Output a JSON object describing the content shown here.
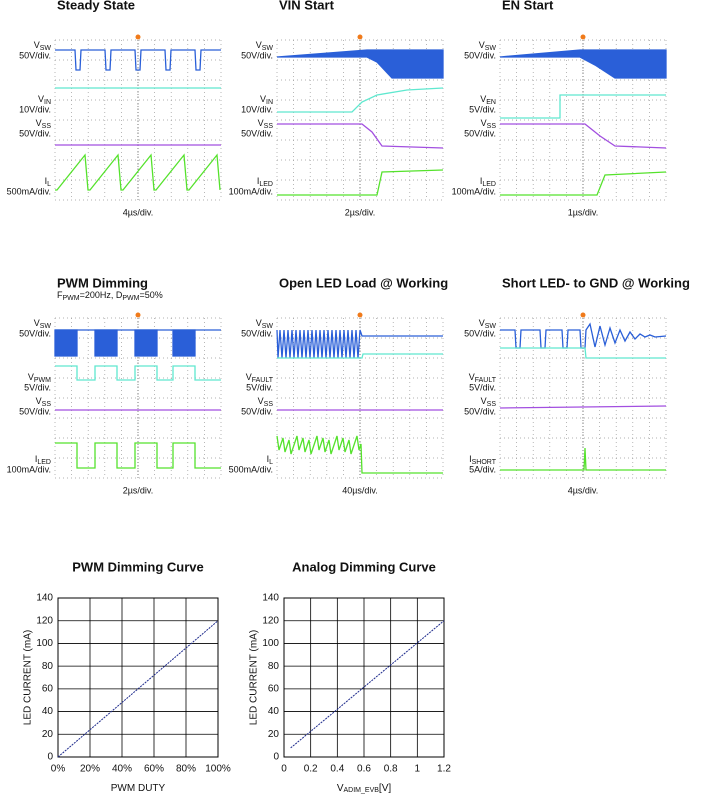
{
  "scopes": [
    {
      "title": "Steady State",
      "channels": [
        {
          "symbol": [
            "V",
            "SW"
          ],
          "scale": "50V/div."
        },
        {
          "symbol": [
            "V",
            "IN"
          ],
          "scale": "10V/div."
        },
        {
          "symbol": [
            "V",
            "SS"
          ],
          "scale": "50V/div."
        },
        {
          "symbol": [
            "I",
            "L"
          ],
          "scale": "500mA/div."
        }
      ],
      "timebase": "4µs/div."
    },
    {
      "title": "VIN Start",
      "channels": [
        {
          "symbol": [
            "V",
            "SW"
          ],
          "scale": "50V/div."
        },
        {
          "symbol": [
            "V",
            "IN"
          ],
          "scale": "10V/div."
        },
        {
          "symbol": [
            "V",
            "SS"
          ],
          "scale": "50V/div."
        },
        {
          "symbol": [
            "I",
            "LED"
          ],
          "scale": "100mA/div."
        }
      ],
      "timebase": "2µs/div."
    },
    {
      "title": "EN Start",
      "channels": [
        {
          "symbol": [
            "V",
            "SW"
          ],
          "scale": "50V/div."
        },
        {
          "symbol": [
            "V",
            "EN"
          ],
          "scale": "5V/div."
        },
        {
          "symbol": [
            "V",
            "SS"
          ],
          "scale": "50V/div."
        },
        {
          "symbol": [
            "I",
            "LED"
          ],
          "scale": "100mA/div."
        }
      ],
      "timebase": "1µs/div."
    },
    {
      "title": "PWM Dimming",
      "subtitle": [
        "F",
        "PWM",
        "=200Hz, D",
        "PWM",
        "=50%"
      ],
      "channels": [
        {
          "symbol": [
            "V",
            "SW"
          ],
          "scale": "50V/div."
        },
        {
          "symbol": [
            "V",
            "PWM"
          ],
          "scale": "5V/div."
        },
        {
          "symbol": [
            "V",
            "SS"
          ],
          "scale": "50V/div."
        },
        {
          "symbol": [
            "I",
            "LED"
          ],
          "scale": "100mA/div."
        }
      ],
      "timebase": "2µs/div."
    },
    {
      "title": "Open LED Load @ Working",
      "channels": [
        {
          "symbol": [
            "V",
            "SW"
          ],
          "scale": "50V/div."
        },
        {
          "symbol": [
            "V",
            "FAULT"
          ],
          "scale": "5V/div."
        },
        {
          "symbol": [
            "V",
            "SS"
          ],
          "scale": "50V/div."
        },
        {
          "symbol": [
            "I",
            "L"
          ],
          "scale": "500mA/div."
        }
      ],
      "timebase": "40µs/div."
    },
    {
      "title": "Short LED- to GND @ Working",
      "channels": [
        {
          "symbol": [
            "V",
            "SW"
          ],
          "scale": "50V/div."
        },
        {
          "symbol": [
            "V",
            "FAULT"
          ],
          "scale": "5V/div."
        },
        {
          "symbol": [
            "V",
            "SS"
          ],
          "scale": "50V/div."
        },
        {
          "symbol": [
            "I",
            "SHORT"
          ],
          "scale": "5A/div."
        }
      ],
      "timebase": "4µs/div."
    }
  ],
  "chart_data": [
    {
      "type": "line",
      "title": "PWM Dimming Curve",
      "x_label": [
        "PWM DUTY"
      ],
      "y_label": "LED CURRENT (mA)",
      "x": [
        0,
        20,
        40,
        60,
        80,
        100
      ],
      "values": [
        0,
        24,
        48,
        72,
        96,
        120
      ],
      "color": "#1d2a8c",
      "xlim": [
        0,
        100
      ],
      "xticks": [
        {
          "value": 0,
          "label": "0%"
        },
        {
          "value": 20,
          "label": "20%"
        },
        {
          "value": 40,
          "label": "40%"
        },
        {
          "value": 60,
          "label": "60%"
        },
        {
          "value": 80,
          "label": "80%"
        },
        {
          "value": 100,
          "label": "100%"
        }
      ],
      "ylim": [
        0,
        140
      ],
      "yticks": [
        0,
        20,
        40,
        60,
        80,
        100,
        120,
        140
      ],
      "grid": true
    },
    {
      "type": "line",
      "title": "Analog Dimming Curve",
      "x_label": [
        "V",
        "ADIM_EVB",
        "[V]"
      ],
      "y_label": "LED CURRENT (mA)",
      "x": [
        0.05,
        0.2,
        0.4,
        0.6,
        0.8,
        1.0,
        1.2
      ],
      "values": [
        8,
        22.6,
        42,
        61.6,
        81,
        100.5,
        120
      ],
      "color": "#1d2a8c",
      "xlim": [
        0,
        1.2
      ],
      "xticks": [
        0,
        0.2,
        0.4,
        0.6,
        0.8,
        {
          "value": 1.0,
          "label": "1"
        },
        1.2
      ],
      "ylim": [
        0,
        140
      ],
      "yticks": [
        0,
        20,
        40,
        60,
        80,
        100,
        120,
        140
      ],
      "grid": true
    }
  ]
}
